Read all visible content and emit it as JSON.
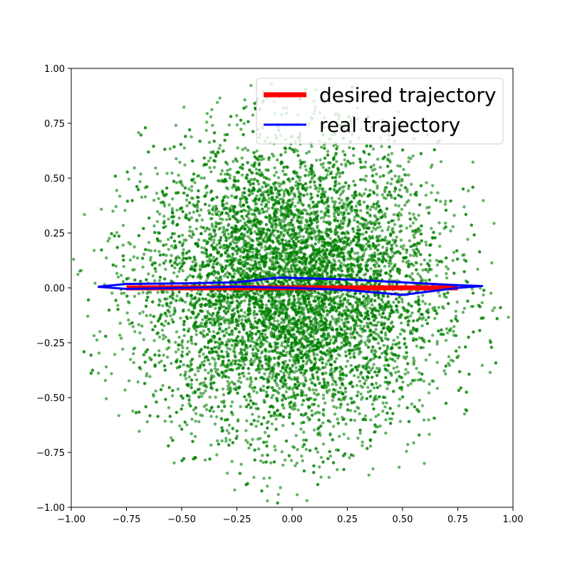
{
  "chart_data": {
    "type": "scatter",
    "title": "",
    "xlabel": "",
    "ylabel": "",
    "xlim": [
      -1.0,
      1.0
    ],
    "ylim": [
      -1.0,
      1.0
    ],
    "grid": false,
    "x_ticks": [
      "−1.00",
      "−0.75",
      "−0.50",
      "−0.25",
      "0.00",
      "0.25",
      "0.50",
      "0.75",
      "1.00"
    ],
    "y_ticks": [
      "−1.00",
      "−0.75",
      "−0.50",
      "−0.25",
      "0.00",
      "0.25",
      "0.50",
      "0.75",
      "1.00"
    ],
    "x_tick_values": [
      -1.0,
      -0.75,
      -0.5,
      -0.25,
      0.0,
      0.25,
      0.5,
      0.75,
      1.0
    ],
    "y_tick_values": [
      -1.0,
      -0.75,
      -0.5,
      -0.25,
      0.0,
      0.25,
      0.5,
      0.75,
      1.0
    ],
    "legend": {
      "placement": "top-right",
      "entries": [
        {
          "label": "desired trajectory",
          "color": "#ff0000"
        },
        {
          "label": "real trajectory",
          "color": "#0000ff"
        }
      ]
    },
    "scatter": {
      "color": "#008000",
      "opacity": 0.6,
      "approx_count": 9000,
      "distribution": "gaussian-disc",
      "center": [
        0.0,
        0.0
      ],
      "spread_x": 0.33,
      "spread_y": 0.33,
      "radius_limit": 1.0
    },
    "series": [
      {
        "name": "desired trajectory",
        "color": "#ff0000",
        "x": [
          -0.75,
          0.75
        ],
        "y": [
          0.0,
          0.0
        ]
      },
      {
        "name": "real trajectory",
        "color": "#0000ff",
        "x": [
          -0.88,
          -0.75,
          -0.5,
          -0.25,
          -0.06,
          0.25,
          0.5,
          0.75,
          0.86,
          0.75,
          0.5,
          0.25,
          0.0,
          -0.25,
          -0.5,
          -0.75,
          -0.88
        ],
        "y": [
          0.005,
          0.018,
          0.02,
          0.025,
          0.047,
          0.038,
          0.025,
          0.012,
          0.008,
          0.0,
          -0.032,
          -0.01,
          0.0,
          0.005,
          0.0,
          -0.005,
          0.005
        ]
      }
    ]
  }
}
